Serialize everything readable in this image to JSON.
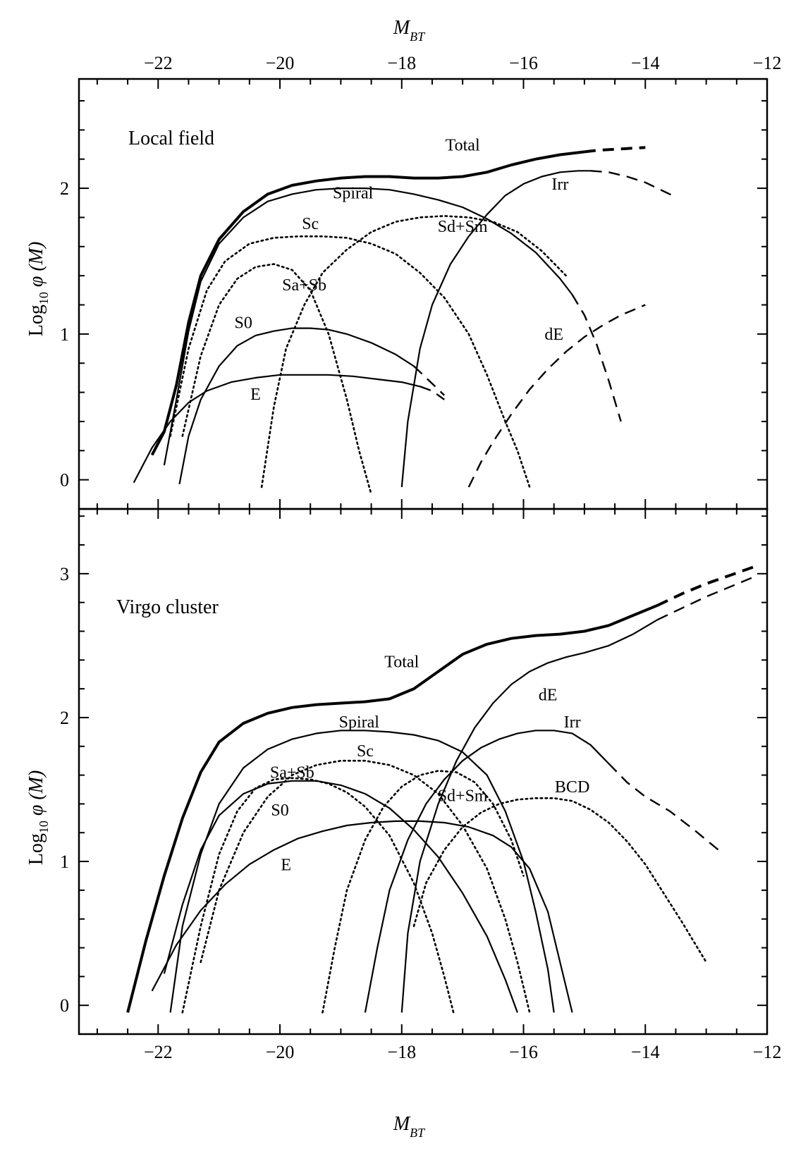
{
  "chart_data": [
    {
      "type": "line",
      "panel": "top",
      "title": "Local field",
      "xlabel": "M",
      "xlabel_sub": "BT",
      "ylabel_prefix": "Log",
      "ylabel_sub": "10",
      "ylabel_suffix": " φ (M)",
      "xlim": [
        -23.3,
        -12
      ],
      "ylim": [
        -0.2,
        2.75
      ],
      "x_ticks": [
        -22,
        -20,
        -18,
        -16,
        -14,
        -12
      ],
      "x_tick_labels": [
        "−22",
        "−20",
        "−18",
        "−16",
        "−14",
        "−12"
      ],
      "y_ticks": [
        0,
        1,
        2
      ],
      "y_tick_labels": [
        "0",
        "1",
        "2"
      ],
      "grid": false,
      "series": [
        {
          "name": "Total",
          "style": "bold",
          "x": [
            -22.1,
            -21.9,
            -21.7,
            -21.5,
            -21.3,
            -21.0,
            -20.6,
            -20.2,
            -19.8,
            -19.4,
            -19.0,
            -18.6,
            -18.2,
            -17.8,
            -17.4,
            -17.0,
            -16.6,
            -16.2,
            -15.8,
            -15.4,
            -15.0
          ],
          "y": [
            0.17,
            0.33,
            0.65,
            1.08,
            1.4,
            1.65,
            1.84,
            1.96,
            2.02,
            2.05,
            2.07,
            2.08,
            2.08,
            2.07,
            2.07,
            2.08,
            2.11,
            2.16,
            2.2,
            2.23,
            2.25
          ]
        },
        {
          "name": "",
          "style": "bold-dashed",
          "x": [
            -15.0,
            -14.8,
            -14.6,
            -14.4,
            -14.2,
            -14.0
          ],
          "y": [
            2.25,
            2.26,
            2.265,
            2.27,
            2.275,
            2.28
          ]
        },
        {
          "name": "Spiral",
          "style": "solid",
          "x": [
            -21.9,
            -21.7,
            -21.5,
            -21.3,
            -21.0,
            -20.6,
            -20.2,
            -19.8,
            -19.4,
            -19.0,
            -18.6,
            -18.2,
            -17.8,
            -17.4,
            -17.0,
            -16.6,
            -16.2,
            -15.8,
            -15.4,
            -15.2
          ],
          "y": [
            0.1,
            0.55,
            1.02,
            1.36,
            1.62,
            1.8,
            1.91,
            1.96,
            1.99,
            2.0,
            2.0,
            1.99,
            1.96,
            1.92,
            1.87,
            1.79,
            1.69,
            1.56,
            1.38,
            1.27
          ]
        },
        {
          "name": "",
          "style": "dashed",
          "x": [
            -15.2,
            -15.0,
            -14.8,
            -14.6,
            -14.4
          ],
          "y": [
            1.27,
            1.13,
            0.93,
            0.68,
            0.4
          ]
        },
        {
          "name": "Sc",
          "style": "dotted",
          "x": [
            -21.8,
            -21.5,
            -21.2,
            -20.9,
            -20.5,
            -20.1,
            -19.7,
            -19.3,
            -18.9,
            -18.5,
            -18.1,
            -17.7,
            -17.3,
            -16.9,
            -16.6,
            -16.3,
            -16.1,
            -15.9
          ],
          "y": [
            0.3,
            0.9,
            1.3,
            1.5,
            1.62,
            1.66,
            1.67,
            1.67,
            1.66,
            1.62,
            1.55,
            1.42,
            1.25,
            1.0,
            0.72,
            0.4,
            0.2,
            -0.05
          ]
        },
        {
          "name": "Sa+Sb",
          "style": "dotted",
          "x": [
            -21.6,
            -21.3,
            -21.0,
            -20.7,
            -20.4,
            -20.1,
            -19.8,
            -19.5,
            -19.2,
            -18.9,
            -18.7,
            -18.5
          ],
          "y": [
            0.3,
            0.85,
            1.2,
            1.38,
            1.46,
            1.48,
            1.44,
            1.3,
            1.0,
            0.55,
            0.2,
            -0.1
          ]
        },
        {
          "name": "Sd+Sm",
          "style": "dotted",
          "x": [
            -20.3,
            -20.1,
            -19.9,
            -19.6,
            -19.3,
            -18.9,
            -18.5,
            -18.1,
            -17.7,
            -17.3,
            -16.9,
            -16.5,
            -16.1,
            -15.7,
            -15.3
          ],
          "y": [
            -0.05,
            0.5,
            0.9,
            1.2,
            1.42,
            1.58,
            1.7,
            1.77,
            1.8,
            1.81,
            1.8,
            1.77,
            1.7,
            1.57,
            1.4
          ]
        },
        {
          "name": "Irr",
          "style": "solid",
          "x": [
            -18.0,
            -17.9,
            -17.7,
            -17.5,
            -17.2,
            -16.9,
            -16.6,
            -16.3,
            -16.0,
            -15.7,
            -15.4,
            -15.1,
            -14.9
          ],
          "y": [
            -0.05,
            0.4,
            0.9,
            1.2,
            1.48,
            1.67,
            1.82,
            1.95,
            2.03,
            2.08,
            2.11,
            2.12,
            2.12
          ]
        },
        {
          "name": "",
          "style": "dashed",
          "x": [
            -14.9,
            -14.6,
            -14.3,
            -14.0,
            -13.8,
            -13.5
          ],
          "y": [
            2.12,
            2.11,
            2.08,
            2.04,
            2.0,
            1.94
          ]
        },
        {
          "name": "S0",
          "style": "solid",
          "x": [
            -21.65,
            -21.5,
            -21.3,
            -21.0,
            -20.7,
            -20.4,
            -20.1,
            -19.8,
            -19.5,
            -19.2,
            -18.9,
            -18.5,
            -18.1,
            -17.8
          ],
          "y": [
            -0.03,
            0.3,
            0.55,
            0.78,
            0.92,
            0.99,
            1.02,
            1.04,
            1.04,
            1.03,
            1.0,
            0.94,
            0.86,
            0.78
          ]
        },
        {
          "name": "",
          "style": "dashed",
          "x": [
            -17.8,
            -17.6,
            -17.3
          ],
          "y": [
            0.78,
            0.7,
            0.58
          ]
        },
        {
          "name": "E",
          "style": "solid",
          "x": [
            -22.4,
            -22.1,
            -21.8,
            -21.5,
            -21.2,
            -20.8,
            -20.4,
            -20.0,
            -19.6,
            -19.2,
            -18.8,
            -18.4,
            -18.0,
            -17.7
          ],
          "y": [
            -0.02,
            0.22,
            0.4,
            0.53,
            0.61,
            0.67,
            0.7,
            0.72,
            0.72,
            0.72,
            0.71,
            0.69,
            0.67,
            0.64
          ]
        },
        {
          "name": "",
          "style": "dashed",
          "x": [
            -17.7,
            -17.5,
            -17.3
          ],
          "y": [
            0.64,
            0.61,
            0.55
          ]
        },
        {
          "name": "dE",
          "style": "dashed",
          "x": [
            -16.9,
            -16.7,
            -16.5,
            -16.2,
            -15.9,
            -15.6,
            -15.3,
            -15.0,
            -14.7,
            -14.4,
            -14.0
          ],
          "y": [
            -0.05,
            0.12,
            0.26,
            0.45,
            0.62,
            0.76,
            0.88,
            0.98,
            1.06,
            1.13,
            1.2
          ]
        }
      ],
      "labels": [
        {
          "text": "Total",
          "x": -17.0,
          "y": 2.26
        },
        {
          "text": "Spiral",
          "x": -18.8,
          "y": 1.93
        },
        {
          "text": "Sc",
          "x": -19.5,
          "y": 1.72
        },
        {
          "text": "Sd+Sm",
          "x": -17.0,
          "y": 1.7
        },
        {
          "text": "Irr",
          "x": -15.4,
          "y": 1.99
        },
        {
          "text": "Sa+Sb",
          "x": -19.6,
          "y": 1.3
        },
        {
          "text": "S0",
          "x": -20.6,
          "y": 1.04
        },
        {
          "text": "dE",
          "x": -15.5,
          "y": 0.96
        },
        {
          "text": "E",
          "x": -20.4,
          "y": 0.55
        }
      ]
    },
    {
      "type": "line",
      "panel": "bottom",
      "title": "Virgo cluster",
      "xlabel": "M",
      "xlabel_sub": "BT",
      "ylabel_prefix": "Log",
      "ylabel_sub": "10",
      "ylabel_suffix": " φ (M)",
      "xlim": [
        -23.3,
        -12
      ],
      "ylim": [
        -0.2,
        3.45
      ],
      "x_ticks": [
        -22,
        -20,
        -18,
        -16,
        -14,
        -12
      ],
      "x_tick_labels": [
        "−22",
        "−20",
        "−18",
        "−16",
        "−14",
        "−12"
      ],
      "y_ticks": [
        0,
        1,
        2,
        3
      ],
      "y_tick_labels": [
        "0",
        "1",
        "2",
        "3"
      ],
      "grid": false,
      "series": [
        {
          "name": "Total",
          "style": "bold",
          "x": [
            -22.5,
            -22.2,
            -21.9,
            -21.6,
            -21.3,
            -21.0,
            -20.6,
            -20.2,
            -19.8,
            -19.4,
            -19.0,
            -18.6,
            -18.2,
            -17.8,
            -17.4,
            -17.0,
            -16.6,
            -16.2,
            -15.8,
            -15.4,
            -15.0,
            -14.6,
            -14.2,
            -13.8
          ],
          "y": [
            -0.05,
            0.45,
            0.9,
            1.3,
            1.62,
            1.83,
            1.96,
            2.03,
            2.07,
            2.09,
            2.1,
            2.11,
            2.13,
            2.2,
            2.32,
            2.44,
            2.51,
            2.55,
            2.57,
            2.58,
            2.6,
            2.64,
            2.71,
            2.78
          ]
        },
        {
          "name": "",
          "style": "bold-dashed",
          "x": [
            -13.8,
            -13.4,
            -13.0,
            -12.6,
            -12.2
          ],
          "y": [
            2.78,
            2.86,
            2.93,
            2.99,
            3.05
          ]
        },
        {
          "name": "dE",
          "style": "solid",
          "x": [
            -18.0,
            -17.9,
            -17.7,
            -17.4,
            -17.1,
            -16.8,
            -16.5,
            -16.2,
            -15.9,
            -15.6,
            -15.3,
            -15.0,
            -14.6,
            -14.2,
            -13.8
          ],
          "y": [
            -0.05,
            0.5,
            1.0,
            1.4,
            1.7,
            1.93,
            2.1,
            2.23,
            2.32,
            2.38,
            2.42,
            2.45,
            2.5,
            2.58,
            2.68
          ]
        },
        {
          "name": "",
          "style": "dashed",
          "x": [
            -13.8,
            -13.4,
            -13.0,
            -12.6,
            -12.2
          ],
          "y": [
            2.68,
            2.76,
            2.84,
            2.91,
            2.98
          ]
        },
        {
          "name": "Spiral",
          "style": "solid",
          "x": [
            -21.8,
            -21.6,
            -21.3,
            -21.0,
            -20.6,
            -20.2,
            -19.8,
            -19.4,
            -19.0,
            -18.6,
            -18.2,
            -17.8,
            -17.4,
            -17.0,
            -16.6,
            -16.3,
            -16.0,
            -15.8,
            -15.6,
            -15.5
          ],
          "y": [
            -0.05,
            0.55,
            1.05,
            1.4,
            1.65,
            1.78,
            1.85,
            1.89,
            1.91,
            1.91,
            1.9,
            1.88,
            1.84,
            1.76,
            1.6,
            1.35,
            1.0,
            0.65,
            0.25,
            -0.05
          ]
        },
        {
          "name": "Sa+Sb",
          "style": "dotted",
          "x": [
            -21.6,
            -21.3,
            -21.0,
            -20.7,
            -20.4,
            -20.1,
            -19.8,
            -19.5,
            -19.2,
            -18.9,
            -18.6,
            -18.2,
            -17.8,
            -17.5,
            -17.3,
            -17.15
          ],
          "y": [
            -0.05,
            0.55,
            1.05,
            1.35,
            1.51,
            1.57,
            1.58,
            1.57,
            1.54,
            1.48,
            1.38,
            1.18,
            0.85,
            0.5,
            0.2,
            -0.05
          ]
        },
        {
          "name": "S0",
          "style": "solid",
          "x": [
            -21.9,
            -21.6,
            -21.3,
            -21.0,
            -20.6,
            -20.2,
            -19.8,
            -19.4,
            -19.0,
            -18.6,
            -18.2,
            -17.8,
            -17.4,
            -17.0,
            -16.6,
            -16.3,
            -16.1
          ],
          "y": [
            0.22,
            0.7,
            1.08,
            1.32,
            1.47,
            1.54,
            1.56,
            1.56,
            1.53,
            1.47,
            1.37,
            1.22,
            1.03,
            0.78,
            0.48,
            0.18,
            -0.05
          ]
        },
        {
          "name": "Sc",
          "style": "dotted",
          "x": [
            -21.3,
            -21.0,
            -20.6,
            -20.2,
            -19.8,
            -19.4,
            -19.0,
            -18.6,
            -18.2,
            -17.8,
            -17.4,
            -17.0,
            -16.6,
            -16.3,
            -16.1,
            -15.9
          ],
          "y": [
            0.3,
            0.8,
            1.2,
            1.45,
            1.6,
            1.67,
            1.7,
            1.7,
            1.67,
            1.6,
            1.47,
            1.25,
            0.95,
            0.6,
            0.3,
            -0.05
          ]
        },
        {
          "name": "Sd+Sm",
          "style": "dotted",
          "x": [
            -19.3,
            -19.1,
            -18.9,
            -18.6,
            -18.3,
            -18.0,
            -17.7,
            -17.4,
            -17.1,
            -16.8,
            -16.5,
            -16.2,
            -16.0
          ],
          "y": [
            -0.05,
            0.4,
            0.8,
            1.15,
            1.38,
            1.52,
            1.6,
            1.63,
            1.62,
            1.55,
            1.4,
            1.15,
            0.9
          ]
        },
        {
          "name": "E",
          "style": "solid",
          "x": [
            -22.1,
            -21.7,
            -21.3,
            -20.9,
            -20.5,
            -20.1,
            -19.7,
            -19.3,
            -18.9,
            -18.5,
            -18.1,
            -17.7,
            -17.3,
            -16.9,
            -16.5,
            -16.2,
            -15.9,
            -15.6,
            -15.4,
            -15.2
          ],
          "y": [
            0.1,
            0.42,
            0.66,
            0.84,
            0.98,
            1.08,
            1.16,
            1.21,
            1.25,
            1.27,
            1.28,
            1.28,
            1.27,
            1.24,
            1.18,
            1.1,
            0.95,
            0.65,
            0.3,
            -0.05
          ]
        },
        {
          "name": "Irr",
          "style": "solid",
          "x": [
            -18.6,
            -18.4,
            -18.2,
            -17.9,
            -17.6,
            -17.3,
            -17.0,
            -16.7,
            -16.4,
            -16.1,
            -15.8,
            -15.5,
            -15.2,
            -14.9,
            -14.6
          ],
          "y": [
            -0.05,
            0.4,
            0.8,
            1.15,
            1.4,
            1.57,
            1.7,
            1.79,
            1.85,
            1.89,
            1.91,
            1.91,
            1.89,
            1.81,
            1.68
          ]
        },
        {
          "name": "",
          "style": "dashed",
          "x": [
            -14.6,
            -14.3,
            -14.0,
            -13.6,
            -13.2,
            -12.8
          ],
          "y": [
            1.68,
            1.55,
            1.45,
            1.35,
            1.22,
            1.08
          ]
        },
        {
          "name": "BCD",
          "style": "dotted",
          "x": [
            -17.8,
            -17.6,
            -17.3,
            -17.0,
            -16.7,
            -16.4,
            -16.1,
            -15.8,
            -15.5,
            -15.2,
            -14.9,
            -14.6,
            -14.3,
            -14.0,
            -13.7,
            -13.4,
            -13.0
          ],
          "y": [
            0.55,
            0.85,
            1.08,
            1.24,
            1.34,
            1.4,
            1.43,
            1.44,
            1.44,
            1.42,
            1.36,
            1.27,
            1.14,
            0.98,
            0.78,
            0.58,
            0.3
          ]
        }
      ],
      "labels": [
        {
          "text": "Total",
          "x": -18.0,
          "y": 2.35
        },
        {
          "text": "dE",
          "x": -15.6,
          "y": 2.12
        },
        {
          "text": "Spiral",
          "x": -18.7,
          "y": 1.93
        },
        {
          "text": "Irr",
          "x": -15.2,
          "y": 1.93
        },
        {
          "text": "Sc",
          "x": -18.6,
          "y": 1.73
        },
        {
          "text": "Sa+Sb",
          "x": -19.8,
          "y": 1.58
        },
        {
          "text": "Sd+Sm",
          "x": -17.0,
          "y": 1.42
        },
        {
          "text": "BCD",
          "x": -15.2,
          "y": 1.48
        },
        {
          "text": "S0",
          "x": -20.0,
          "y": 1.32
        },
        {
          "text": "E",
          "x": -19.9,
          "y": 0.94
        }
      ]
    }
  ]
}
